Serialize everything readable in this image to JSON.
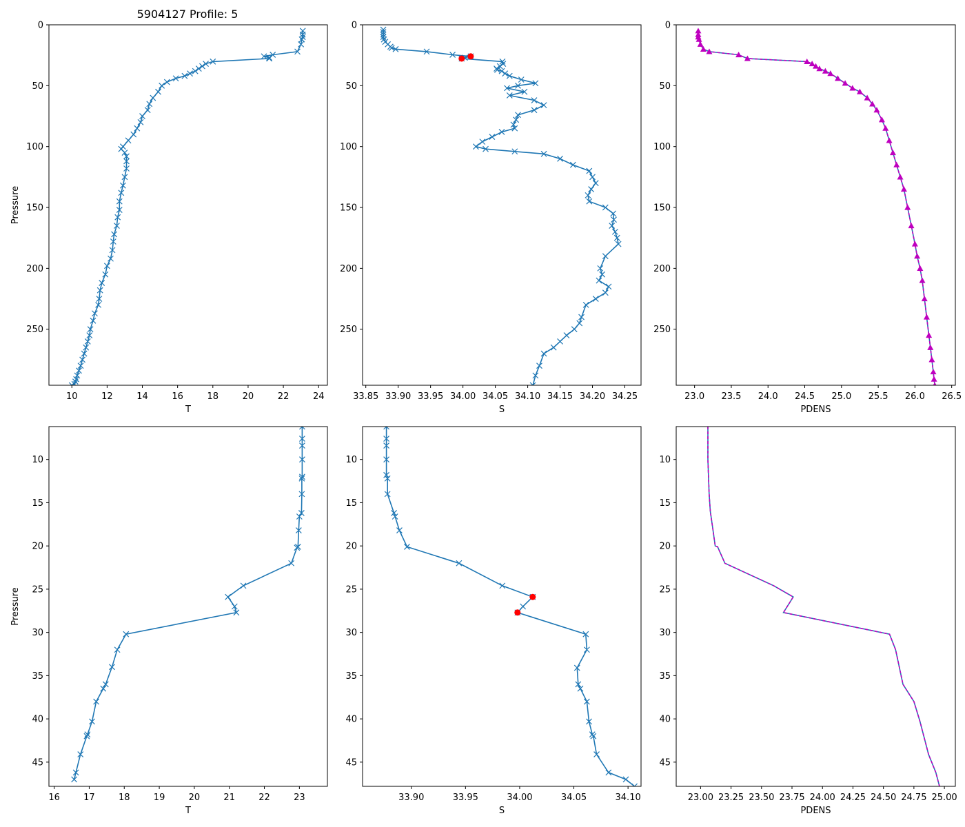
{
  "title": "5904127 Profile: 5",
  "colors": {
    "line": "#1f77b4",
    "flag": "#ff0000",
    "pdens": "#bf00bf"
  },
  "chart_data": [
    {
      "type": "line",
      "panel": "top-left",
      "title": "5904127 Profile: 5",
      "xlabel": "T",
      "ylabel": "Pressure",
      "xlim": [
        8.7,
        24.5
      ],
      "ylim": [
        296,
        0
      ],
      "xticks": [
        10,
        12,
        14,
        16,
        18,
        20,
        22,
        24
      ],
      "yticks": [
        0,
        50,
        100,
        150,
        200,
        250
      ],
      "series": [
        {
          "name": "T",
          "marker": "x",
          "x": [
            23.1,
            23.1,
            23.1,
            23.05,
            23.0,
            22.8,
            21.4,
            20.9,
            21.2,
            21.2,
            18.0,
            17.6,
            17.4,
            17.2,
            17.0,
            16.7,
            16.4,
            15.9,
            15.4,
            15.1,
            14.9,
            14.6,
            14.4,
            14.3,
            14.0,
            13.9,
            13.7,
            13.5,
            13.2,
            12.9,
            12.8,
            13.0,
            13.1,
            13.1,
            13.1,
            13.0,
            12.9,
            12.8,
            12.7,
            12.7,
            12.6,
            12.55,
            12.4,
            12.35,
            12.3,
            12.2,
            12.0,
            11.9,
            11.7,
            11.6,
            11.55,
            11.5,
            11.3,
            11.2,
            11.05,
            11.0,
            10.9,
            10.8,
            10.7,
            10.6,
            10.5,
            10.4,
            10.3,
            10.25,
            10.2,
            10.15,
            10.0
          ],
          "y": [
            5,
            8,
            10,
            12,
            16,
            22,
            24.6,
            25.9,
            27,
            27.7,
            30.2,
            32,
            34,
            36,
            38,
            40,
            42,
            44,
            47,
            50,
            55,
            60,
            65,
            70,
            75,
            80,
            85,
            90,
            95,
            100,
            102,
            105,
            108,
            112,
            118,
            125,
            132,
            138,
            145,
            152,
            158,
            165,
            172,
            178,
            185,
            192,
            198,
            205,
            212,
            218,
            225,
            230,
            237,
            243,
            250,
            255,
            260,
            265,
            270,
            275,
            280,
            284,
            288,
            291,
            293,
            295,
            296
          ]
        }
      ]
    },
    {
      "type": "line",
      "panel": "top-middle",
      "xlabel": "S",
      "ylabel": "",
      "xlim": [
        33.845,
        34.275
      ],
      "ylim": [
        296,
        0
      ],
      "xticks": [
        33.85,
        33.9,
        33.95,
        34.0,
        34.05,
        34.1,
        34.15,
        34.2,
        34.25
      ],
      "yticks": [
        0,
        50,
        100,
        150,
        200,
        250
      ],
      "series": [
        {
          "name": "S",
          "marker": "x",
          "x": [
            33.877,
            33.877,
            33.877,
            33.877,
            33.878,
            33.88,
            33.884,
            33.888,
            33.89,
            33.896,
            33.944,
            33.984,
            34.012,
            34.003,
            33.998,
            34.061,
            34.062,
            34.057,
            34.052,
            34.053,
            34.06,
            34.065,
            34.072,
            34.09,
            34.112,
            34.085,
            34.068,
            34.095,
            34.072,
            34.11,
            34.125,
            34.11,
            34.085,
            34.082,
            34.078,
            34.08,
            34.06,
            34.045,
            34.03,
            34.02,
            34.035,
            34.08,
            34.125,
            34.15,
            34.17,
            34.195,
            34.2,
            34.205,
            34.198,
            34.193,
            34.195,
            34.22,
            34.232,
            34.233,
            34.23,
            34.235,
            34.238,
            34.24,
            34.22,
            34.212,
            34.215,
            34.21,
            34.225,
            34.22,
            34.205,
            34.19,
            34.183,
            34.18,
            34.172,
            34.16,
            34.15,
            34.14,
            34.125,
            34.118,
            34.112,
            34.108
          ],
          "y": [
            4,
            6,
            8,
            10,
            12,
            14,
            16,
            18,
            19,
            20,
            22,
            24.6,
            25.9,
            27,
            27.7,
            30.2,
            32,
            34,
            36,
            37,
            38,
            40,
            42,
            45,
            48,
            50,
            52,
            55,
            58,
            62,
            66,
            70,
            74,
            78,
            82,
            85,
            88,
            92,
            96,
            100,
            102,
            104,
            106,
            110,
            115,
            120,
            125,
            130,
            135,
            140,
            145,
            150,
            155,
            160,
            165,
            170,
            175,
            180,
            190,
            200,
            205,
            210,
            215,
            220,
            225,
            230,
            240,
            245,
            250,
            255,
            260,
            265,
            270,
            280,
            288,
            296
          ]
        },
        {
          "name": "flagged",
          "marker": "o",
          "x": [
            34.012,
            33.998
          ],
          "y": [
            25.9,
            27.7
          ]
        }
      ]
    },
    {
      "type": "line",
      "panel": "top-right",
      "xlabel": "PDENS",
      "ylabel": "",
      "xlim": [
        22.75,
        26.55
      ],
      "ylim": [
        296,
        0
      ],
      "xticks": [
        23.0,
        23.5,
        24.0,
        24.5,
        25.0,
        25.5,
        26.0,
        26.5
      ],
      "yticks": [
        0,
        50,
        100,
        150,
        200,
        250
      ],
      "series": [
        {
          "name": "PDENS",
          "marker": "^",
          "x": [
            23.05,
            23.05,
            23.05,
            23.06,
            23.08,
            23.12,
            23.2,
            23.6,
            23.72,
            24.53,
            24.6,
            24.65,
            24.7,
            24.78,
            24.85,
            24.95,
            25.05,
            25.15,
            25.25,
            25.35,
            25.42,
            25.48,
            25.55,
            25.6,
            25.65,
            25.7,
            25.75,
            25.8,
            25.85,
            25.9,
            25.95,
            26.0,
            26.03,
            26.07,
            26.1,
            26.13,
            26.16,
            26.19,
            26.21,
            26.23,
            26.25,
            26.26,
            26.27
          ],
          "y": [
            5,
            8,
            10,
            12,
            16,
            20,
            22,
            24.6,
            27.7,
            30.2,
            32,
            34,
            36,
            38,
            40,
            44,
            48,
            52,
            55,
            60,
            65,
            70,
            78,
            85,
            95,
            105,
            115,
            125,
            135,
            150,
            165,
            180,
            190,
            200,
            210,
            225,
            240,
            255,
            265,
            275,
            285,
            291,
            296
          ]
        }
      ]
    },
    {
      "type": "line",
      "panel": "bottom-left",
      "xlabel": "T",
      "ylabel": "Pressure",
      "xlim": [
        15.85,
        23.8
      ],
      "ylim": [
        47.8,
        6.2
      ],
      "xticks": [
        16,
        17,
        18,
        19,
        20,
        21,
        22,
        23
      ],
      "yticks": [
        10,
        15,
        20,
        25,
        30,
        35,
        40,
        45
      ],
      "series": [
        {
          "name": "T",
          "marker": "x",
          "x": [
            23.08,
            23.08,
            23.08,
            23.08,
            23.08,
            23.07,
            23.07,
            23.06,
            23.0,
            22.98,
            22.96,
            22.93,
            22.77,
            21.4,
            20.96,
            21.15,
            21.2,
            18.05,
            17.8,
            17.65,
            17.47,
            17.4,
            17.2,
            17.08,
            16.95,
            16.93,
            16.75,
            16.62,
            16.57
          ],
          "y": [
            6.2,
            7.6,
            8.4,
            10,
            12,
            12.2,
            14,
            16.2,
            16.6,
            18.2,
            20.1,
            20.2,
            22,
            24.6,
            25.9,
            27,
            27.7,
            30.2,
            32,
            34,
            36,
            36.5,
            38,
            40.3,
            41.8,
            42,
            44.1,
            46.2,
            47
          ]
        }
      ]
    },
    {
      "type": "line",
      "panel": "bottom-middle",
      "xlabel": "S",
      "ylabel": "",
      "xlim": [
        33.855,
        34.112
      ],
      "ylim": [
        47.8,
        6.2
      ],
      "xticks": [
        33.9,
        33.95,
        34.0,
        34.05,
        34.1
      ],
      "yticks": [
        10,
        15,
        20,
        25,
        30,
        35,
        40,
        45
      ],
      "series": [
        {
          "name": "S",
          "marker": "x",
          "x": [
            33.877,
            33.877,
            33.877,
            33.877,
            33.877,
            33.878,
            33.878,
            33.884,
            33.885,
            33.889,
            33.896,
            33.944,
            33.984,
            34.012,
            34.003,
            33.998,
            34.061,
            34.062,
            34.053,
            34.054,
            34.056,
            34.062,
            34.064,
            34.067,
            34.068,
            34.071,
            34.082,
            34.098,
            34.106
          ],
          "y": [
            6.2,
            7.6,
            8.4,
            10,
            11.8,
            12.2,
            14,
            16.2,
            16.6,
            18.2,
            20.1,
            22,
            24.6,
            25.9,
            27,
            27.7,
            30.2,
            32,
            34.1,
            36,
            36.5,
            38,
            40.3,
            41.8,
            42,
            44.1,
            46.2,
            47,
            47.8
          ]
        },
        {
          "name": "flagged",
          "marker": "o",
          "x": [
            34.012,
            33.998
          ],
          "y": [
            25.9,
            27.7
          ]
        }
      ]
    },
    {
      "type": "line",
      "panel": "bottom-right",
      "xlabel": "PDENS",
      "ylabel": "",
      "xlim": [
        22.8,
        25.09
      ],
      "ylim": [
        47.8,
        6.2
      ],
      "xticks": [
        23.0,
        23.25,
        23.5,
        23.75,
        24.0,
        24.25,
        24.5,
        24.75,
        25.0
      ],
      "yticks": [
        10,
        15,
        20,
        25,
        30,
        35,
        40,
        45
      ],
      "series": [
        {
          "name": "PDENS",
          "marker": "none",
          "x": [
            23.06,
            23.06,
            23.07,
            23.08,
            23.1,
            23.12,
            23.14,
            23.2,
            23.6,
            23.76,
            23.68,
            24.55,
            24.6,
            24.66,
            24.75,
            24.8,
            24.87,
            24.93,
            24.96
          ],
          "y": [
            6.2,
            10,
            14,
            16,
            18,
            20,
            20.1,
            22,
            24.6,
            25.9,
            27.7,
            30.2,
            32,
            36,
            38,
            40.3,
            44.1,
            46.2,
            47.8
          ]
        }
      ]
    }
  ]
}
